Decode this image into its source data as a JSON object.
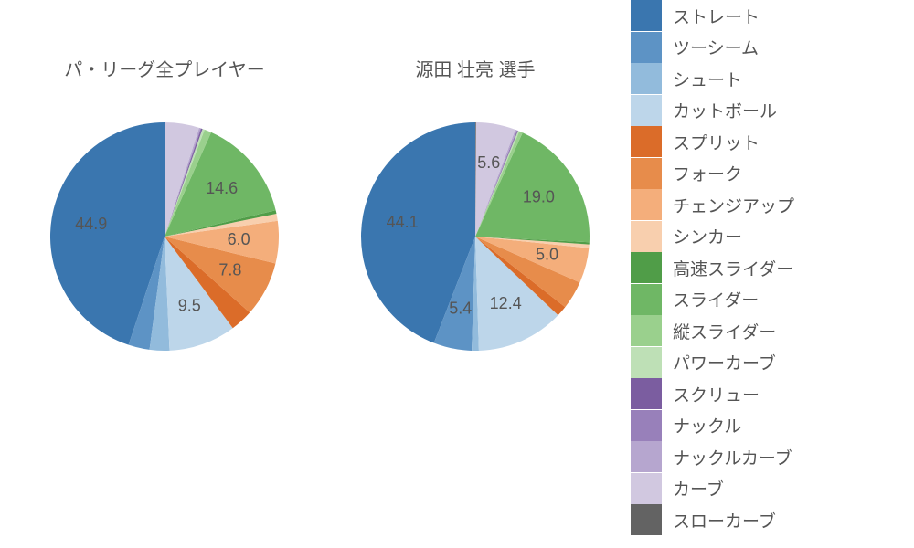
{
  "type": "pie-comparison",
  "background_color": "#ffffff",
  "text_color": "#555555",
  "title_fontsize": 20,
  "label_fontsize": 18,
  "legend_fontsize": 19,
  "pie_radius": 125,
  "label_threshold": 5.0,
  "label_radius_factor": 0.65,
  "charts": [
    {
      "title": "パ・リーグ全プレイヤー",
      "slices": [
        {
          "label": "ストレート",
          "value": 44.9,
          "color": "#3a76af"
        },
        {
          "label": "ツーシーム",
          "value": 3.0,
          "color": "#5d93c5"
        },
        {
          "label": "シュート",
          "value": 2.8,
          "color": "#92bbdc"
        },
        {
          "label": "カットボール",
          "value": 9.5,
          "color": "#bdd6ea"
        },
        {
          "label": "スプリット",
          "value": 3.2,
          "color": "#db6c29"
        },
        {
          "label": "フォーク",
          "value": 7.8,
          "color": "#e78c4b"
        },
        {
          "label": "チェンジアップ",
          "value": 6.0,
          "color": "#f4ae7b"
        },
        {
          "label": "シンカー",
          "value": 1.0,
          "color": "#f8cfae"
        },
        {
          "label": "高速スライダー",
          "value": 0.5,
          "color": "#509d48"
        },
        {
          "label": "スライダー",
          "value": 14.6,
          "color": "#6fb765"
        },
        {
          "label": "縦スライダー",
          "value": 1.0,
          "color": "#9ad08d"
        },
        {
          "label": "パワーカーブ",
          "value": 0.3,
          "color": "#bee0b6"
        },
        {
          "label": "スクリュー",
          "value": 0.2,
          "color": "#7b5da0"
        },
        {
          "label": "ナックル",
          "value": 0.1,
          "color": "#9880ba"
        },
        {
          "label": "ナックルカーブ",
          "value": 0.2,
          "color": "#b6a6cf"
        },
        {
          "label": "カーブ",
          "value": 4.8,
          "color": "#d1c8e0"
        },
        {
          "label": "スローカーブ",
          "value": 0.1,
          "color": "#636363"
        }
      ]
    },
    {
      "title": "源田 壮亮  選手",
      "slices": [
        {
          "label": "ストレート",
          "value": 44.1,
          "color": "#3a76af"
        },
        {
          "label": "ツーシーム",
          "value": 5.4,
          "color": "#5d93c5"
        },
        {
          "label": "シュート",
          "value": 1.0,
          "color": "#92bbdc"
        },
        {
          "label": "カットボール",
          "value": 12.4,
          "color": "#bdd6ea"
        },
        {
          "label": "スプリット",
          "value": 1.5,
          "color": "#db6c29"
        },
        {
          "label": "フォーク",
          "value": 4.0,
          "color": "#e78c4b"
        },
        {
          "label": "チェンジアップ",
          "value": 5.0,
          "color": "#f4ae7b"
        },
        {
          "label": "シンカー",
          "value": 0.5,
          "color": "#f8cfae"
        },
        {
          "label": "高速スライダー",
          "value": 0.3,
          "color": "#509d48"
        },
        {
          "label": "スライダー",
          "value": 19.0,
          "color": "#6fb765"
        },
        {
          "label": "縦スライダー",
          "value": 0.5,
          "color": "#9ad08d"
        },
        {
          "label": "パワーカーブ",
          "value": 0.2,
          "color": "#bee0b6"
        },
        {
          "label": "スクリュー",
          "value": 0.1,
          "color": "#7b5da0"
        },
        {
          "label": "ナックル",
          "value": 0.1,
          "color": "#9880ba"
        },
        {
          "label": "ナックルカーブ",
          "value": 0.2,
          "color": "#b6a6cf"
        },
        {
          "label": "カーブ",
          "value": 5.6,
          "color": "#d1c8e0"
        },
        {
          "label": "スローカーブ",
          "value": 0.1,
          "color": "#636363"
        }
      ]
    }
  ],
  "legend_items": [
    {
      "label": "ストレート",
      "color": "#3a76af"
    },
    {
      "label": "ツーシーム",
      "color": "#5d93c5"
    },
    {
      "label": "シュート",
      "color": "#92bbdc"
    },
    {
      "label": "カットボール",
      "color": "#bdd6ea"
    },
    {
      "label": "スプリット",
      "color": "#db6c29"
    },
    {
      "label": "フォーク",
      "color": "#e78c4b"
    },
    {
      "label": "チェンジアップ",
      "color": "#f4ae7b"
    },
    {
      "label": "シンカー",
      "color": "#f8cfae"
    },
    {
      "label": "高速スライダー",
      "color": "#509d48"
    },
    {
      "label": "スライダー",
      "color": "#6fb765"
    },
    {
      "label": "縦スライダー",
      "color": "#9ad08d"
    },
    {
      "label": "パワーカーブ",
      "color": "#bee0b6"
    },
    {
      "label": "スクリュー",
      "color": "#7b5da0"
    },
    {
      "label": "ナックル",
      "color": "#9880ba"
    },
    {
      "label": "ナックルカーブ",
      "color": "#b6a6cf"
    },
    {
      "label": "カーブ",
      "color": "#d1c8e0"
    },
    {
      "label": "スローカーブ",
      "color": "#636363"
    }
  ]
}
